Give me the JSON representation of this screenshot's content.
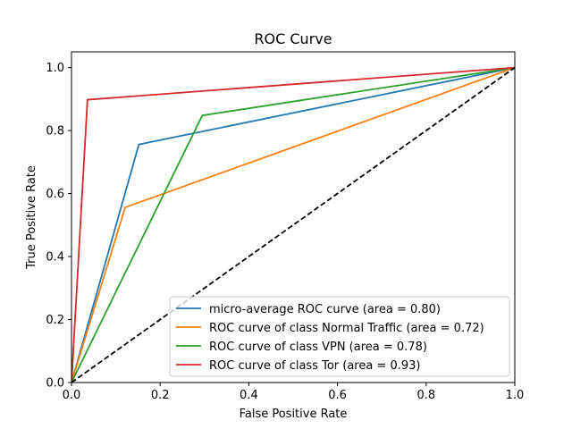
{
  "chart_data": {
    "type": "line",
    "title": "ROC Curve",
    "xlabel": "False Positive Rate",
    "ylabel": "True Positive Rate",
    "xlim": [
      0.0,
      1.0
    ],
    "ylim": [
      0.0,
      1.05
    ],
    "xticks": [
      0.0,
      0.2,
      0.4,
      0.6,
      0.8,
      1.0
    ],
    "yticks": [
      0.0,
      0.2,
      0.4,
      0.6,
      0.8,
      1.0
    ],
    "xtick_labels": [
      "0.0",
      "0.2",
      "0.4",
      "0.6",
      "0.8",
      "1.0"
    ],
    "ytick_labels": [
      "0.0",
      "0.2",
      "0.4",
      "0.6",
      "0.8",
      "1.0"
    ],
    "grid": false,
    "legend_position": "bottom-right",
    "series": [
      {
        "name": "micro-average ROC curve (area = 0.80)",
        "color": "#1f77b4",
        "x": [
          0.0,
          0.152,
          1.0
        ],
        "y": [
          0.0,
          0.756,
          1.0
        ]
      },
      {
        "name": "ROC curve of class Normal Traffic (area = 0.72)",
        "color": "#ff7f0e",
        "x": [
          0.0,
          0.121,
          1.0
        ],
        "y": [
          0.0,
          0.556,
          1.0
        ]
      },
      {
        "name": "ROC curve of class VPN (area = 0.78)",
        "color": "#2ca02c",
        "x": [
          0.0,
          0.295,
          1.0
        ],
        "y": [
          0.0,
          0.848,
          1.0
        ]
      },
      {
        "name": "ROC curve of class Tor (area = 0.93)",
        "color": "#d62728",
        "x": [
          0.0,
          0.036,
          1.0
        ],
        "y": [
          0.0,
          0.898,
          1.0
        ]
      }
    ],
    "reference_line": {
      "color": "#000000",
      "style": "dashed",
      "x": [
        0.0,
        1.0
      ],
      "y": [
        0.0,
        1.0
      ]
    }
  }
}
